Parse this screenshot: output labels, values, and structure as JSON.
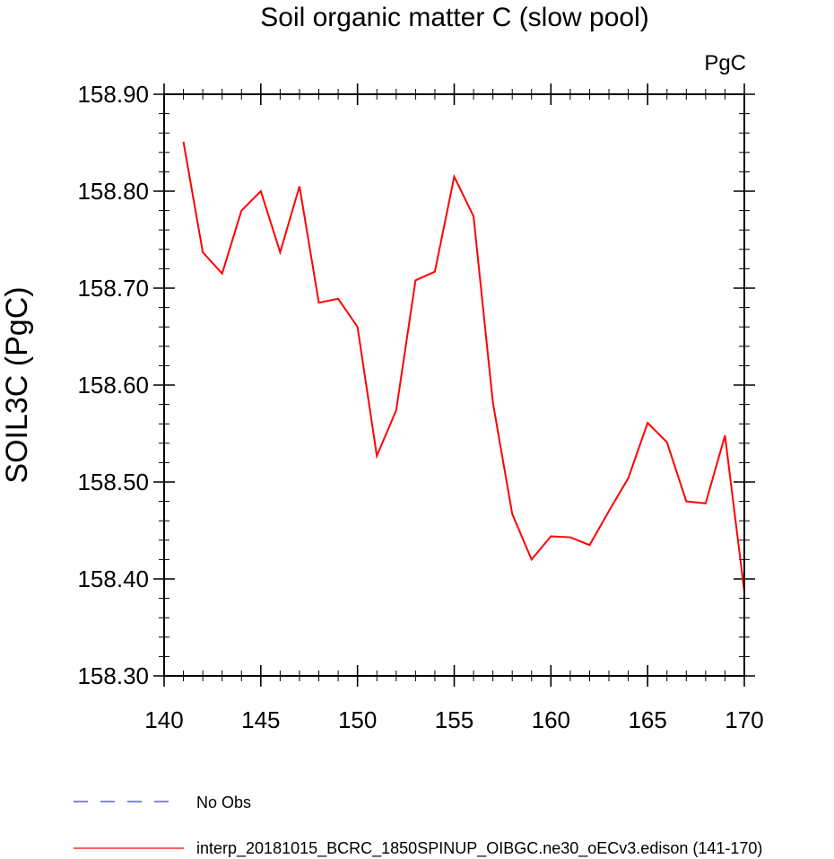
{
  "chart_data": {
    "type": "line",
    "title": "Soil organic matter C (slow pool)",
    "units": "PgC",
    "xlabel": "",
    "ylabel": "SOIL3C  (PgC)",
    "xlim": [
      140,
      170
    ],
    "ylim": [
      158.3,
      158.9
    ],
    "x_ticks": [
      140,
      145,
      150,
      155,
      160,
      165,
      170
    ],
    "x_tick_labels": [
      "140",
      "145",
      "150",
      "155",
      "160",
      "165",
      "170"
    ],
    "y_ticks": [
      158.3,
      158.4,
      158.5,
      158.6,
      158.7,
      158.8,
      158.9
    ],
    "y_tick_labels": [
      "158.30",
      "158.40",
      "158.50",
      "158.60",
      "158.70",
      "158.80",
      "158.90"
    ],
    "grid": false,
    "legend_position": "bottom",
    "series": [
      {
        "name": "No Obs",
        "color": "#3b3bd6",
        "style": "dashed",
        "x": [],
        "values": []
      },
      {
        "name": "interp_20181015_BCRC_1850SPINUP_OIBGC.ne30_oECv3.edison (141-170)",
        "color": "#ff0000",
        "style": "solid",
        "x": [
          141,
          142,
          143,
          144,
          145,
          146,
          147,
          148,
          149,
          150,
          151,
          152,
          153,
          154,
          155,
          156,
          157,
          158,
          159,
          160,
          161,
          162,
          163,
          164,
          165,
          166,
          167,
          168,
          169,
          170
        ],
        "values": [
          158.851,
          158.737,
          158.715,
          158.78,
          158.8,
          158.737,
          158.805,
          158.685,
          158.689,
          158.66,
          158.527,
          158.574,
          158.708,
          158.717,
          158.815,
          158.774,
          158.582,
          158.467,
          158.42,
          158.444,
          158.443,
          158.435,
          158.47,
          158.504,
          158.561,
          158.541,
          158.48,
          158.478,
          158.548,
          158.387
        ]
      }
    ]
  }
}
